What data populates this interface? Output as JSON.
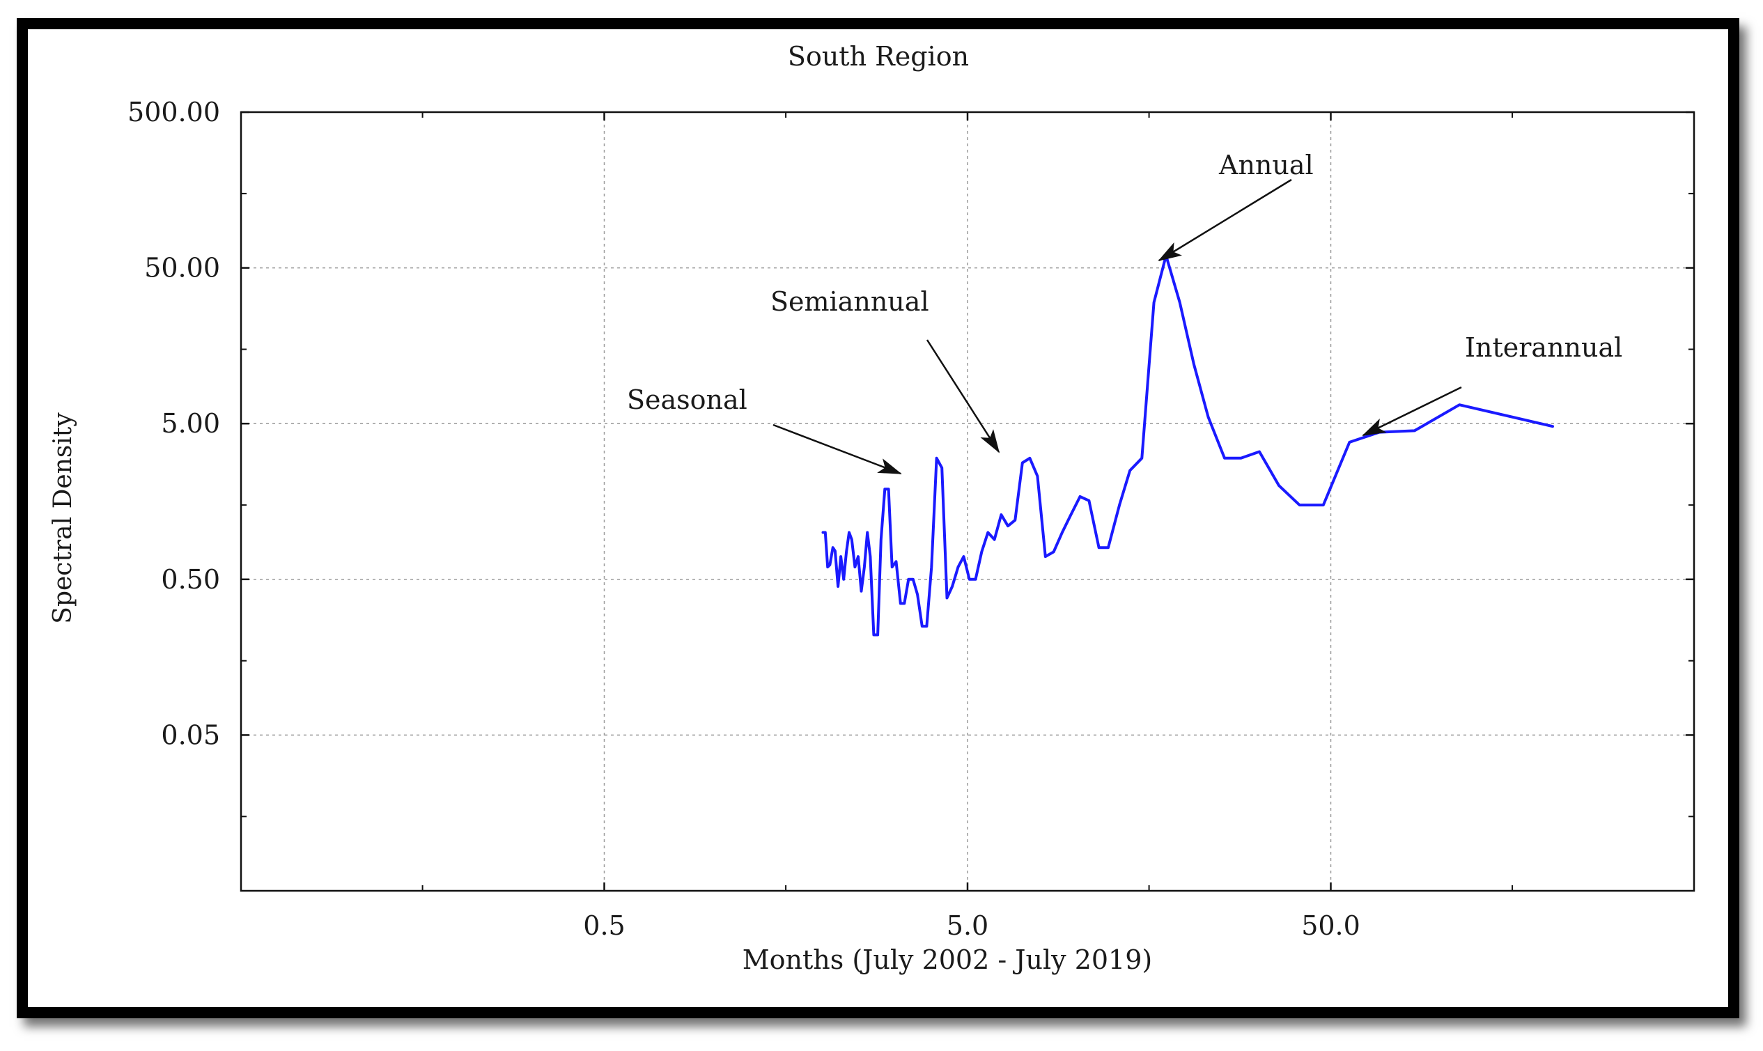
{
  "chart_data": {
    "type": "line",
    "title": "South Region",
    "xlabel": "Months (July 2002 - July 2019)",
    "ylabel": "Spectral Density",
    "x_scale": "log",
    "y_scale": "log",
    "xlim": [
      0.05,
      500
    ],
    "ylim": [
      0.005,
      500
    ],
    "x_ticks": [
      0.5,
      5.0,
      50.0
    ],
    "x_tick_labels": [
      "0.5",
      "5.0",
      "50.0"
    ],
    "y_ticks": [
      500,
      50,
      5,
      0.5,
      0.05
    ],
    "y_tick_labels": [
      "500.00",
      "50.00",
      "5.00",
      "0.50",
      "0.05"
    ],
    "grid": true,
    "line_color": "#1a1aff",
    "series": [
      {
        "name": "Spectral Density",
        "x": [
          2.0,
          2.03,
          2.06,
          2.09,
          2.13,
          2.16,
          2.2,
          2.24,
          2.28,
          2.32,
          2.36,
          2.4,
          2.45,
          2.5,
          2.55,
          2.6,
          2.65,
          2.7,
          2.76,
          2.83,
          2.89,
          2.96,
          3.03,
          3.1,
          3.18,
          3.27,
          3.35,
          3.44,
          3.54,
          3.64,
          3.75,
          3.86,
          3.98,
          4.11,
          4.25,
          4.39,
          4.54,
          4.71,
          4.88,
          5.06,
          5.26,
          5.47,
          5.69,
          5.93,
          6.19,
          6.46,
          6.76,
          7.08,
          7.42,
          7.79,
          8.19,
          8.63,
          9.11,
          9.63,
          10.2,
          10.8,
          11.5,
          12.2,
          13.1,
          14.0,
          15.1,
          16.3,
          17.6,
          19.2,
          21.0,
          23.0,
          25.5,
          28.3,
          31.8,
          36.0,
          41.0,
          47.7,
          56.3,
          68.0,
          85.0,
          113.0,
          204.0
        ],
        "values": [
          1.0,
          1.0,
          0.6,
          0.62,
          0.8,
          0.76,
          0.45,
          0.7,
          0.5,
          0.75,
          1.0,
          0.9,
          0.6,
          0.7,
          0.42,
          0.6,
          1.0,
          0.7,
          0.22,
          0.22,
          0.9,
          1.9,
          1.9,
          0.6,
          0.65,
          0.35,
          0.35,
          0.5,
          0.5,
          0.4,
          0.25,
          0.25,
          0.6,
          3.0,
          2.6,
          0.38,
          0.45,
          0.6,
          0.7,
          0.5,
          0.5,
          0.75,
          1.0,
          0.9,
          1.3,
          1.1,
          1.2,
          2.8,
          3.0,
          2.3,
          0.7,
          0.75,
          1.0,
          1.3,
          1.7,
          1.6,
          0.8,
          0.8,
          1.5,
          2.5,
          3.0,
          30,
          60,
          30,
          12,
          5.5,
          3.0,
          3.0,
          3.3,
          2.0,
          1.5,
          1.5,
          3.8,
          4.4,
          4.5,
          6.6,
          4.8
        ]
      }
    ],
    "annotations": [
      {
        "label": "Annual",
        "x": 13.0,
        "y": 60.0
      },
      {
        "label": "Semiannual",
        "x": 5.93,
        "y": 5.0
      },
      {
        "label": "Seasonal",
        "x": 3.9,
        "y": 2.6
      },
      {
        "label": "Interannual",
        "x": 40.0,
        "y": 4.5
      }
    ]
  }
}
